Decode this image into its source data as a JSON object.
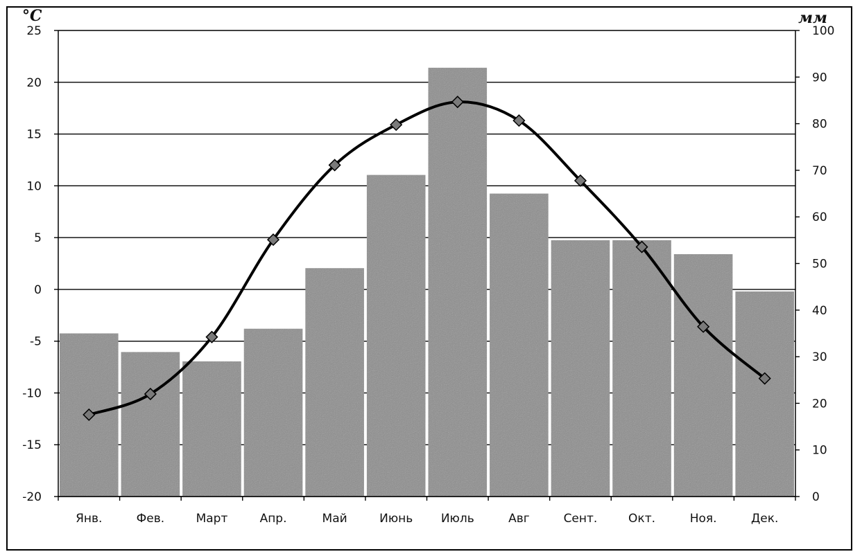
{
  "chart_data": {
    "type": "bar+line",
    "categories": [
      "Янв.",
      "Фев.",
      "Март",
      "Апр.",
      "Май",
      "Июнь",
      "Июль",
      "Авг",
      "Сент.",
      "Окт.",
      "Ноя.",
      "Дек."
    ],
    "series": [
      {
        "type": "bar",
        "axis": "right",
        "values": [
          35,
          31,
          29,
          36,
          49,
          69,
          92,
          65,
          55,
          55,
          52,
          44
        ]
      },
      {
        "type": "line",
        "axis": "left",
        "values": [
          -12.1,
          -10.1,
          -4.6,
          4.8,
          12.0,
          15.9,
          18.1,
          16.3,
          10.5,
          4.1,
          -3.6,
          -8.6
        ]
      }
    ],
    "y_left": {
      "label": "°C",
      "min": -20,
      "max": 25,
      "ticks": [
        "25",
        "20",
        "15",
        "10",
        "5",
        "0",
        "-5",
        "-10",
        "-15",
        "-20"
      ]
    },
    "y_right": {
      "label": "мм",
      "min": 0,
      "max": 100,
      "ticks": [
        "100",
        "90",
        "80",
        "70",
        "60",
        "50",
        "40",
        "30",
        "20",
        "10",
        "0"
      ]
    },
    "grid": true,
    "colors": {
      "bar": "#8c8c8c",
      "line": "#000000",
      "marker": "#7a7a7a"
    }
  }
}
